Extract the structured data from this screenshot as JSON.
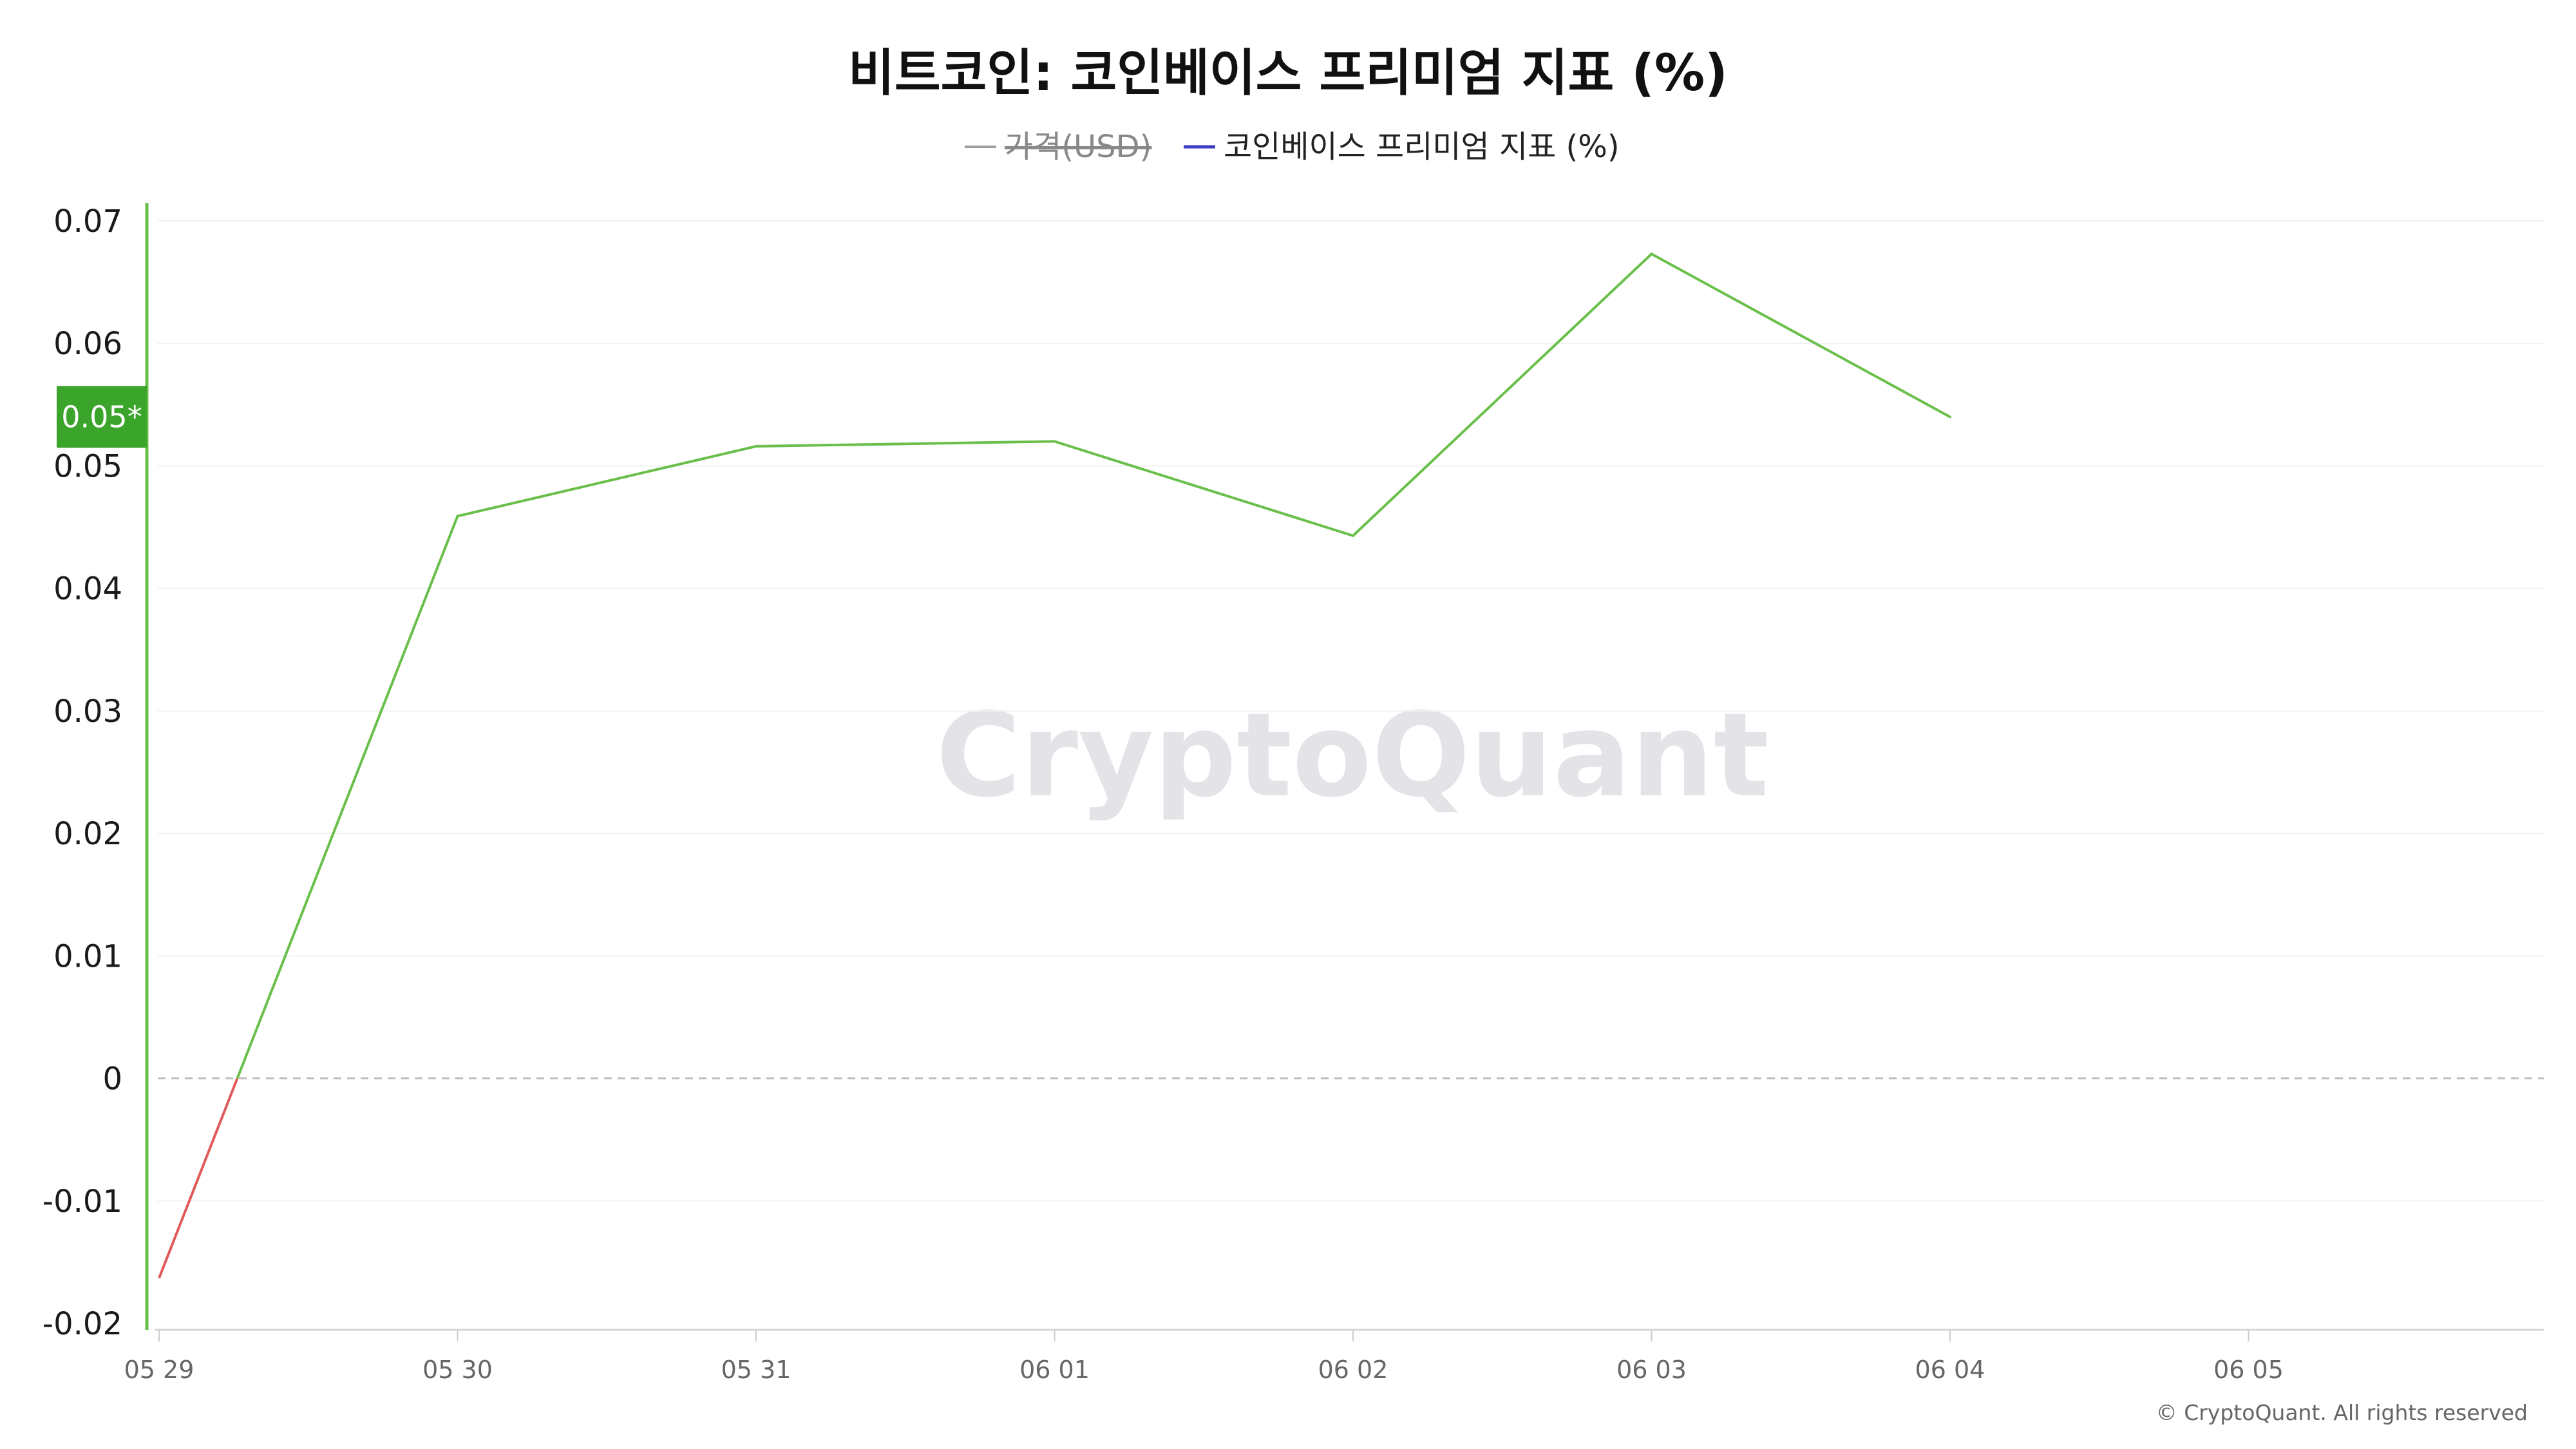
{
  "chart_data": {
    "type": "line",
    "title": "비트코인: 코인베이스 프리미엄 지표 (%)",
    "legend": [
      {
        "label": "가격(USD)",
        "color": "#9e9e9e",
        "hidden": true
      },
      {
        "label": "코인베이스 프리미엄 지표 (%)",
        "color": "#3b3bc4",
        "hidden": false
      }
    ],
    "legend_position": "top-center",
    "categories": [
      "05 29",
      "05 30",
      "05 31",
      "06 01",
      "06 02",
      "06 03",
      "06 04",
      "06 05"
    ],
    "series": [
      {
        "name": "코인베이스 프리미엄 지표 (%)",
        "x": [
          "05 29",
          "05 30",
          "05 31",
          "06 01",
          "06 02",
          "06 03",
          "06 04"
        ],
        "values": [
          -0.0163,
          0.0459,
          0.0516,
          0.052,
          0.0443,
          0.0673,
          0.054
        ],
        "color_positive": "#6abf4b",
        "color_negative": "#e05a5a"
      }
    ],
    "ylim": [
      -0.02,
      0.07
    ],
    "yticks": [
      "-0.02",
      "-0.01",
      "0",
      "0.01",
      "0.02",
      "0.03",
      "0.04",
      "0.05",
      "0.06",
      "0.07"
    ],
    "current_value_label": "0.05*",
    "badge_color": "#3aa52a",
    "zero_line": "dashed",
    "grid": true,
    "watermark": "CryptoQuant",
    "copyright": "© CryptoQuant. All rights reserved"
  }
}
